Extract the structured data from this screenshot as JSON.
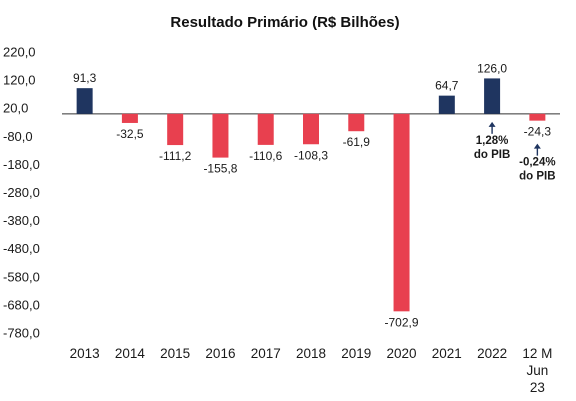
{
  "chart_data": {
    "type": "bar",
    "title": "Resultado Primário (R$ Bilhões)",
    "xlabel": "",
    "ylabel": "",
    "ylim": [
      -780,
      220
    ],
    "y_ticks": [
      220,
      120,
      20,
      -80,
      -180,
      -280,
      -380,
      -480,
      -580,
      -680,
      -780
    ],
    "y_tick_labels": [
      "220,0",
      "120,0",
      "20,0",
      "-80,0",
      "-180,0",
      "-280,0",
      "-380,0",
      "-480,0",
      "-580,0",
      "-680,0",
      "-780,0"
    ],
    "grid": false,
    "legend": "none",
    "categories": [
      "2013",
      "2014",
      "2015",
      "2016",
      "2017",
      "2018",
      "2019",
      "2020",
      "2021",
      "2022",
      "12 M Jun 23"
    ],
    "category_lines": [
      [
        "2013"
      ],
      [
        "2014"
      ],
      [
        "2015"
      ],
      [
        "2016"
      ],
      [
        "2017"
      ],
      [
        "2018"
      ],
      [
        "2019"
      ],
      [
        "2020"
      ],
      [
        "2021"
      ],
      [
        "2022"
      ],
      [
        "12 M",
        "Jun",
        "23"
      ]
    ],
    "values": [
      91.3,
      -32.5,
      -111.2,
      -155.8,
      -110.6,
      -108.3,
      -61.9,
      -702.9,
      64.7,
      126.0,
      -24.3
    ],
    "value_labels": [
      "91,3",
      "-32,5",
      "-111,2",
      "-155,8",
      "-110,6",
      "-108,3",
      "-61,9",
      "-702,9",
      "64,7",
      "126,0",
      "-24,3"
    ],
    "colors": {
      "positive": "#1f3560",
      "negative": "#e8404f",
      "axis": "#333333"
    },
    "annotations": [
      {
        "category": "2022",
        "lines": [
          "1,28%",
          "do PIB"
        ]
      },
      {
        "category": "12 M Jun 23",
        "lines": [
          "-0,24%",
          "do PIB"
        ]
      }
    ]
  }
}
